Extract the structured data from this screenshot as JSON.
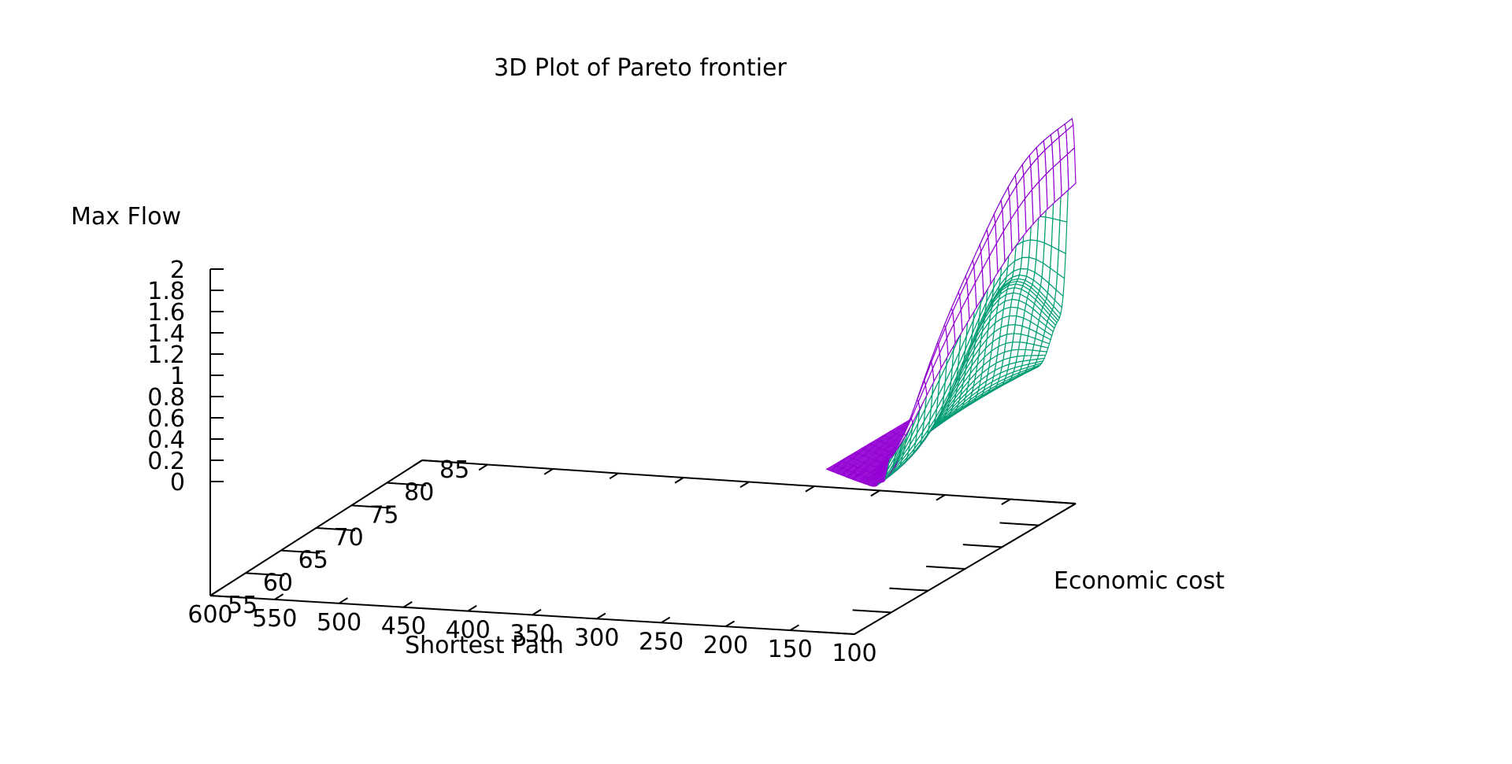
{
  "chart_data": {
    "type": "surface",
    "title": "3D Plot of Pareto frontier",
    "xlabel": "Shortest Path",
    "ylabel": "Economic cost",
    "zlabel": "Max Flow",
    "xlim": [
      100,
      600
    ],
    "ylim": [
      55,
      85
    ],
    "zlim": [
      0,
      2
    ],
    "x_ticks": [
      600,
      550,
      500,
      450,
      400,
      350,
      300,
      250,
      200,
      150,
      100
    ],
    "y_ticks": [
      55,
      60,
      65,
      70,
      75,
      80,
      85
    ],
    "z_ticks": [
      0,
      0.2,
      0.4,
      0.6,
      0.8,
      1,
      1.2,
      1.4,
      1.6,
      1.8,
      2
    ],
    "surface_x_range": [
      150,
      600
    ],
    "surface_y_range": [
      60,
      85
    ],
    "surface_color": "#9400d3",
    "underside_color": "#009e73",
    "grid": false
  }
}
